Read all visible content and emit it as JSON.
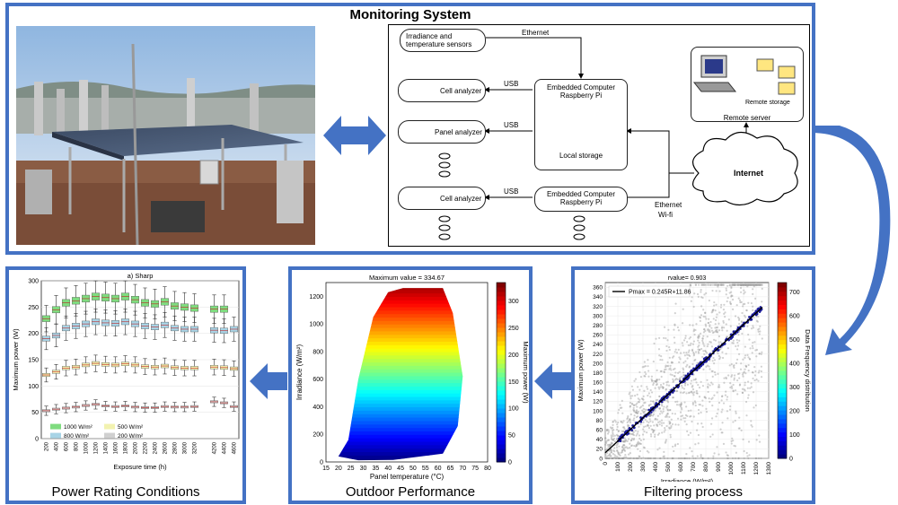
{
  "monitoring": {
    "title": "Monitoring System",
    "sensors": [
      "Irradiance and",
      "temperature sensors"
    ],
    "ethernet_label": "Ethernet",
    "cell_analyzer": "Cell analyzer",
    "panel_analyzer": "Panel analyzer",
    "usb": "USB",
    "computer_line1": "Embedded Computer",
    "computer_line2": "Raspberry Pi",
    "local_storage": "Local storage",
    "remote_storage": "Remote storage",
    "remote_server": "Remote server",
    "internet": "Internet",
    "ethernet_wifi_1": "Ethernet",
    "ethernet_wifi_2": "Wi-fi"
  },
  "panels": {
    "power_rating": "Power Rating Conditions",
    "outdoor": "Outdoor Performance",
    "filtering": "Filtering process"
  },
  "colors": {
    "frame": "#4472c4",
    "arrow": "#4472c4"
  },
  "chart_data": [
    {
      "type": "box",
      "title": "a) Sharp",
      "xlabel": "Exposure time (h)",
      "ylabel": "Maximum power (W)",
      "ylim": [
        0,
        300
      ],
      "yticks": [
        0,
        50,
        100,
        150,
        200,
        250,
        300
      ],
      "categories": [
        "200",
        "400",
        "600",
        "800",
        "1000",
        "1200",
        "1400",
        "1600",
        "1800",
        "2000",
        "2200",
        "2400",
        "2600",
        "2800",
        "3000",
        "3200",
        "",
        "4200",
        "4400",
        "4600"
      ],
      "legend": [
        "1000 W/m²",
        "500 W/m²",
        "800 W/m²",
        "200 W/m²"
      ],
      "series": [
        {
          "name": "1000 W/m²",
          "color": "#7fdc7f",
          "values": [
            228,
            245,
            258,
            262,
            266,
            270,
            268,
            266,
            270,
            264,
            258,
            256,
            260,
            252,
            250,
            248,
            null,
            246,
            246,
            null
          ]
        },
        {
          "name": "800 W/m²",
          "color": "#a8d4e6",
          "values": [
            190,
            196,
            210,
            214,
            218,
            222,
            220,
            219,
            222,
            218,
            214,
            212,
            216,
            210,
            208,
            208,
            null,
            206,
            205,
            208
          ]
        },
        {
          "name": "500 W/m²",
          "color": "#f2f2b0",
          "values": [
            121,
            127,
            134,
            136,
            140,
            143,
            141,
            140,
            142,
            140,
            137,
            136,
            138,
            135,
            134,
            134,
            null,
            136,
            135,
            133
          ]
        },
        {
          "name": "200 W/m²",
          "color": "#d0d0d0",
          "values": [
            53,
            56,
            58,
            60,
            63,
            65,
            62,
            61,
            62,
            60,
            59,
            59,
            61,
            60,
            60,
            61,
            null,
            70,
            68,
            61
          ]
        }
      ]
    },
    {
      "type": "heatmap",
      "title": "Maximum value = 334.67",
      "xlabel": "Panel temperature (°C)",
      "ylabel": "Irradiance (W/m²)",
      "colorbar_label": "Maximum power (W)",
      "xlim": [
        15,
        80
      ],
      "ylim": [
        0,
        1300
      ],
      "xticks": [
        15,
        20,
        25,
        30,
        35,
        40,
        45,
        50,
        55,
        60,
        65,
        70,
        75,
        80
      ],
      "yticks": [
        0,
        200,
        400,
        600,
        800,
        1000,
        1200
      ],
      "cticks": [
        0,
        50,
        100,
        150,
        200,
        250,
        300
      ],
      "crange": [
        0,
        334.67
      ]
    },
    {
      "type": "scatter",
      "title": "rvalue= 0.903",
      "xlabel": "Irradiance (W/m²)",
      "ylabel": "Maximum power (W)",
      "colorbar_label": "Data Frequency distribution",
      "legend": "Pmax = 0.245R+11.86",
      "xlim": [
        0,
        1300
      ],
      "ylim": [
        0,
        370
      ],
      "xticks": [
        0,
        100,
        200,
        300,
        400,
        500,
        600,
        700,
        800,
        900,
        1000,
        1100,
        1200,
        1300
      ],
      "yticks": [
        0,
        20,
        40,
        60,
        80,
        100,
        120,
        140,
        160,
        180,
        200,
        220,
        240,
        260,
        280,
        300,
        320,
        340,
        360
      ],
      "cticks": [
        0,
        100,
        200,
        300,
        400,
        500,
        600,
        700
      ],
      "fit": {
        "slope": 0.245,
        "intercept": 11.86
      }
    }
  ]
}
